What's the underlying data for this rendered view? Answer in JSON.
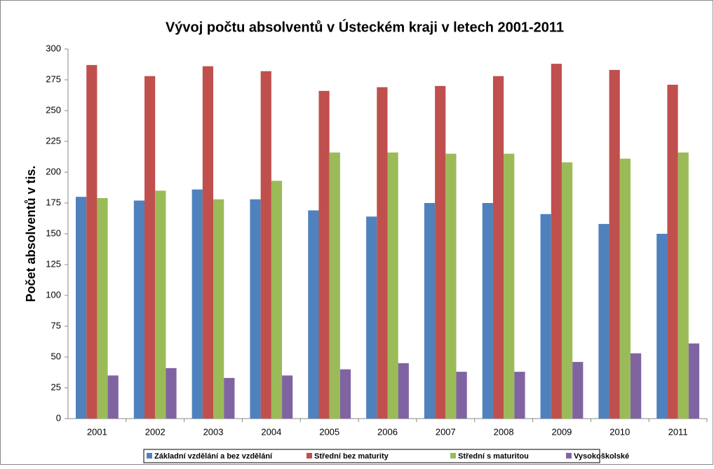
{
  "chart_data": {
    "type": "bar",
    "title": "Vývoj počtu absolventů v Ústeckém kraji v letech 2001-2011",
    "y_label": "Počet absolventů v tis.",
    "categories": [
      "2001",
      "2002",
      "2003",
      "2004",
      "2005",
      "2006",
      "2007",
      "2008",
      "2009",
      "2010",
      "2011"
    ],
    "series": [
      {
        "name": "Základní vzdělání a bez vzdělání",
        "color": "#4f81bd",
        "values": [
          180,
          177,
          186,
          178,
          169,
          164,
          175,
          175,
          166,
          158,
          150
        ]
      },
      {
        "name": "Střední bez maturity",
        "color": "#c0504d",
        "values": [
          287,
          278,
          286,
          282,
          266,
          269,
          270,
          278,
          288,
          283,
          271
        ]
      },
      {
        "name": "Střední s maturitou",
        "color": "#9bbb59",
        "values": [
          179,
          185,
          178,
          193,
          216,
          216,
          215,
          215,
          208,
          211,
          216
        ]
      },
      {
        "name": "Vysokoškolské",
        "color": "#8064a2",
        "values": [
          35,
          41,
          33,
          35,
          40,
          45,
          38,
          38,
          46,
          53,
          61
        ]
      }
    ],
    "ylim": [
      0,
      300
    ],
    "yticks": [
      0,
      25,
      50,
      75,
      100,
      125,
      150,
      175,
      200,
      225,
      250,
      275,
      300
    ],
    "grid": false,
    "legend": "bottom"
  }
}
